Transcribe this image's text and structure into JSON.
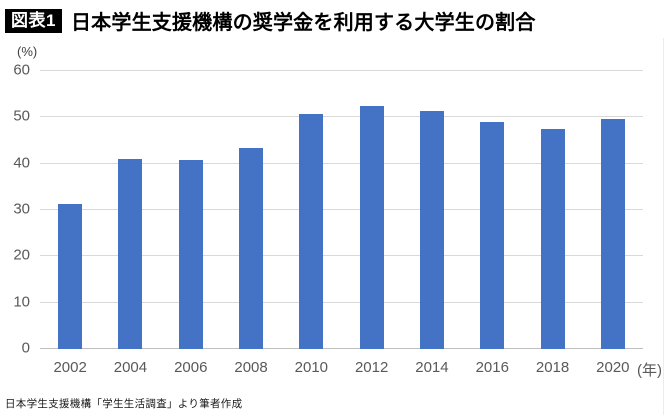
{
  "header": {
    "badge": "図表1",
    "title": "日本学生支援機構の奨学金を利用する大学生の割合"
  },
  "axes": {
    "y_unit": "(%)",
    "x_unit": "(年)"
  },
  "footer": {
    "source": "日本学生支援機構「学生生活調査」より筆者作成"
  },
  "chart_data": {
    "type": "bar",
    "title": "日本学生支援機構の奨学金を利用する大学生の割合",
    "categories": [
      "2002",
      "2004",
      "2006",
      "2008",
      "2010",
      "2012",
      "2014",
      "2016",
      "2018",
      "2020"
    ],
    "values": [
      31.2,
      41.1,
      40.9,
      43.3,
      50.7,
      52.5,
      51.3,
      48.9,
      47.5,
      49.6
    ],
    "xlabel": "(年)",
    "ylabel": "(%)",
    "ylim": [
      0,
      60
    ],
    "yticks": [
      0,
      10,
      20,
      30,
      40,
      50,
      60
    ],
    "grid": true,
    "legend": "none",
    "colors": {
      "bar": "#4472C4",
      "gridline": "#D9D9D9",
      "axis_line": "#BFBFBF",
      "tick_label": "#595959"
    }
  }
}
